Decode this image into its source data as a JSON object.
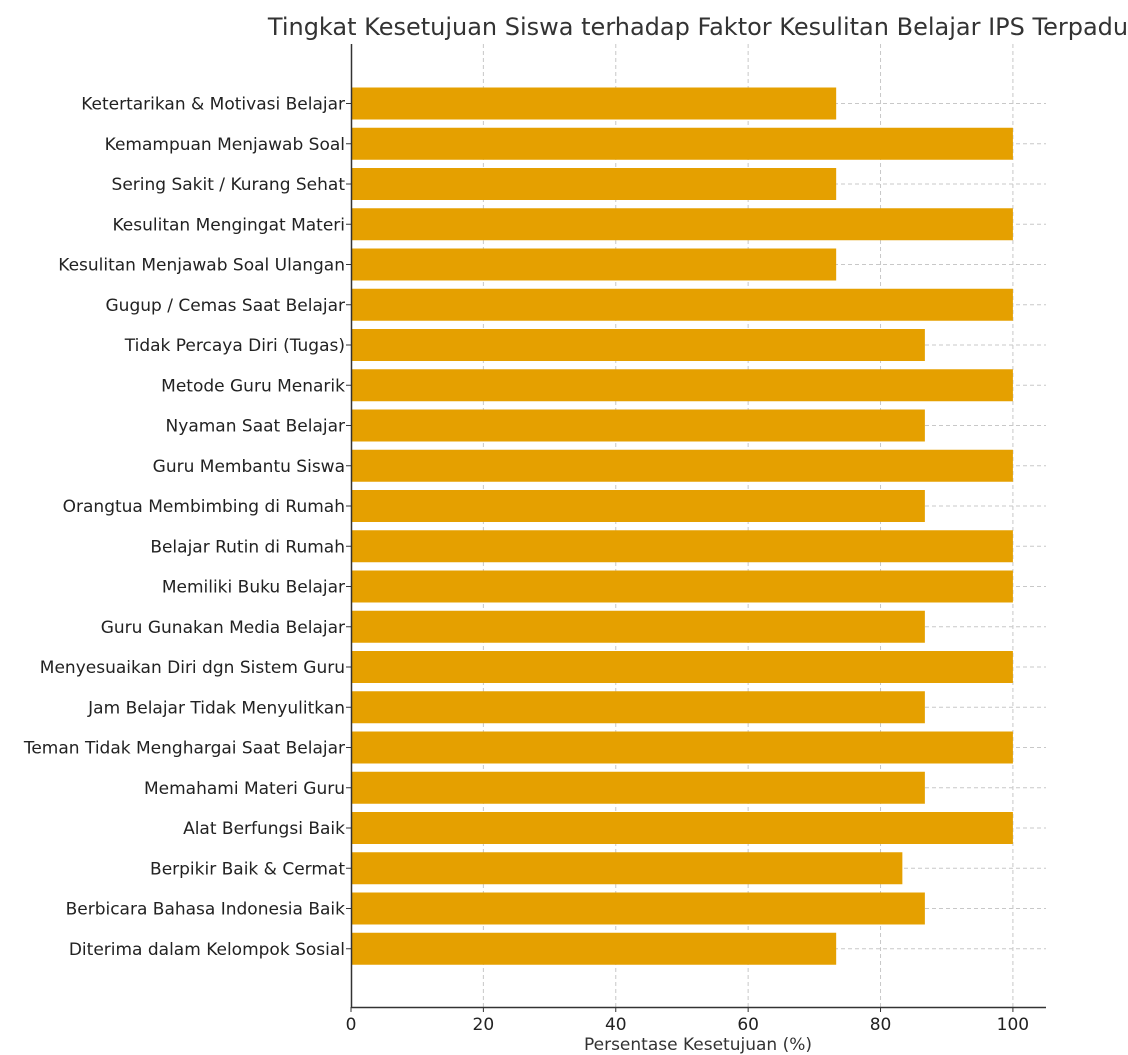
{
  "chart_data": {
    "type": "bar",
    "orientation": "horizontal",
    "title": "Tingkat Kesetujuan Siswa terhadap Faktor Kesulitan Belajar IPS Terpadu",
    "xlabel": "Persentase Kesetujuan (%)",
    "ylabel": "",
    "xlim": [
      0,
      105
    ],
    "xticks": [
      0,
      20,
      40,
      60,
      80,
      100
    ],
    "grid": true,
    "bar_color": "#E5A000",
    "categories": [
      "Ketertarikan & Motivasi Belajar",
      "Kemampuan Menjawab Soal",
      "Sering Sakit / Kurang Sehat",
      "Kesulitan Mengingat Materi",
      "Kesulitan Menjawab Soal Ulangan",
      "Gugup / Cemas Saat Belajar",
      "Tidak Percaya Diri (Tugas)",
      "Metode Guru Menarik",
      "Nyaman Saat Belajar",
      "Guru Membantu Siswa",
      "Orangtua Membimbing di Rumah",
      "Belajar Rutin di Rumah",
      "Memiliki Buku Belajar",
      "Guru Gunakan Media Belajar",
      "Menyesuaikan Diri dgn Sistem Guru",
      "Jam Belajar Tidak Menyulitkan",
      "Teman Tidak Menghargai Saat Belajar",
      "Memahami Materi Guru",
      "Alat Berfungsi Baik",
      "Berpikir Baik & Cermat",
      "Berbicara Bahasa Indonesia Baik",
      "Diterima dalam Kelompok Sosial"
    ],
    "values": [
      73.3,
      100,
      73.3,
      100,
      73.3,
      100,
      86.7,
      100,
      86.7,
      100,
      86.7,
      100,
      100,
      86.7,
      100,
      86.7,
      100,
      86.7,
      100,
      83.3,
      86.7,
      73.3
    ]
  }
}
